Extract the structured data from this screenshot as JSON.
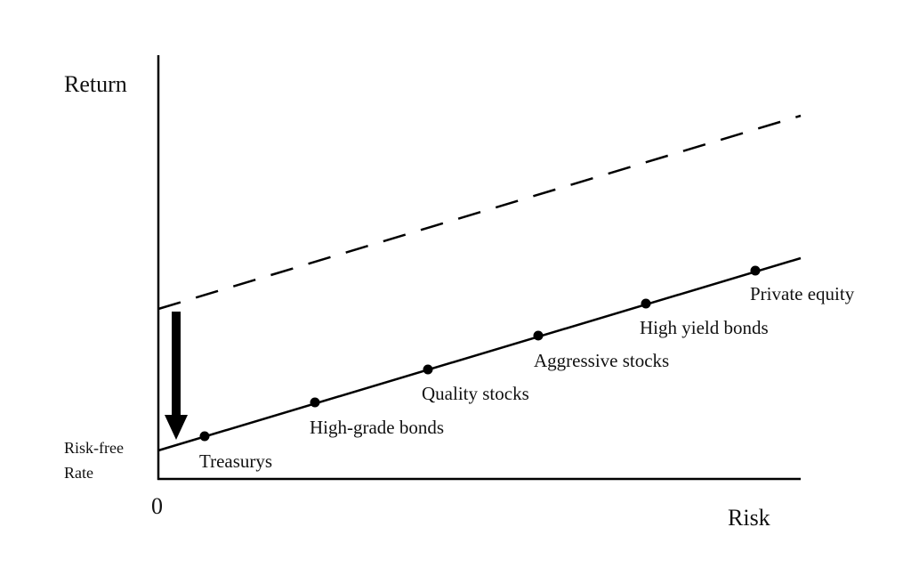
{
  "y_axis_label": "Return",
  "x_axis_label": "Risk",
  "origin_label": "0",
  "risk_free_label": [
    "Risk-free",
    "Rate"
  ],
  "nodes": [
    {
      "label": "Treasurys"
    },
    {
      "label": "High-grade bonds"
    },
    {
      "label": "Quality stocks"
    },
    {
      "label": "Aggressive stocks"
    },
    {
      "label": "High yield bonds"
    },
    {
      "label": "Private equity"
    }
  ]
}
